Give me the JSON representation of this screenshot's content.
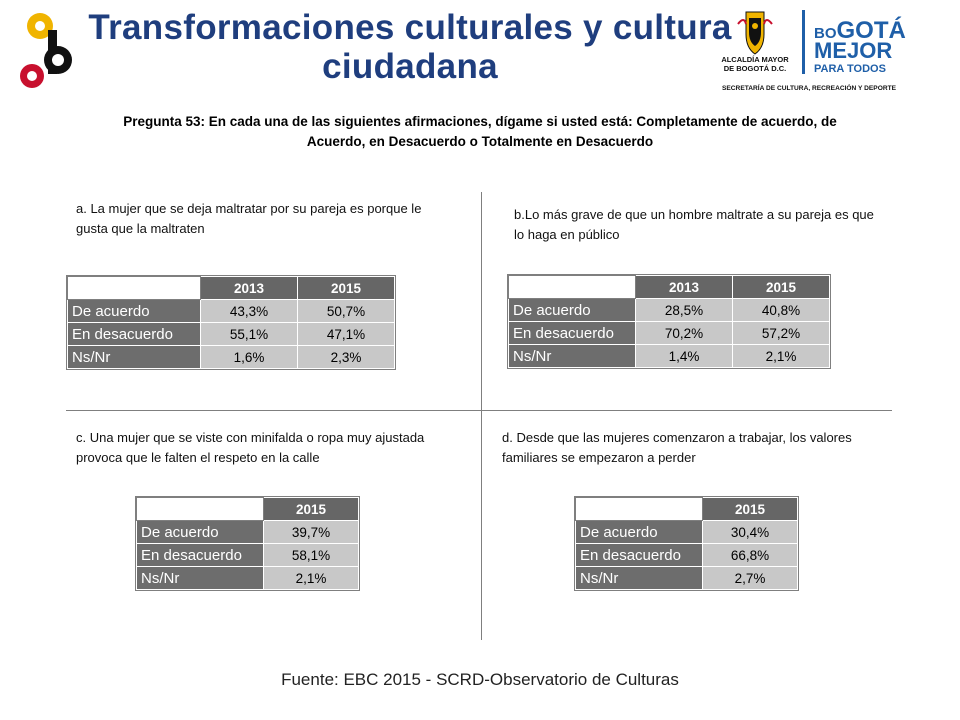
{
  "header": {
    "title_line1": "Transformaciones culturales y cultura",
    "title_line2": "ciudadana",
    "logo_right": {
      "city_name_line1": "ALCALDÍA MAYOR",
      "city_name_line2": "DE BOGOTÁ D.C.",
      "brand_line1_a": "BO",
      "brand_line1_b": "GOTÁ",
      "brand_line2": "MEJOR",
      "brand_line3": "PARA TODOS",
      "secretaria": "SECRETARÍA DE CULTURA, RECREACIÓN Y DEPORTE"
    }
  },
  "question": "Pregunta 53: En cada una de las siguientes afirmaciones, dígame si usted está: Completamente de acuerdo, de Acuerdo, en Desacuerdo o Totalmente en Desacuerdo",
  "panels": {
    "a": {
      "statement": "a. La mujer que se deja maltratar por su pareja es porque le gusta que la maltraten",
      "headers": [
        "2013",
        "2015"
      ],
      "rows": [
        {
          "label": "De acuerdo",
          "values": [
            "43,3%",
            "50,7%"
          ]
        },
        {
          "label": "En desacuerdo",
          "values": [
            "55,1%",
            "47,1%"
          ]
        },
        {
          "label": "Ns/Nr",
          "values": [
            "1,6%",
            "2,3%"
          ]
        }
      ]
    },
    "b": {
      "statement": "b.Lo más grave de que un hombre maltrate a su pareja es que lo haga en público",
      "headers": [
        "2013",
        "2015"
      ],
      "rows": [
        {
          "label": "De acuerdo",
          "values": [
            "28,5%",
            "40,8%"
          ]
        },
        {
          "label": "En desacuerdo",
          "values": [
            "70,2%",
            "57,2%"
          ]
        },
        {
          "label": "Ns/Nr",
          "values": [
            "1,4%",
            "2,1%"
          ]
        }
      ]
    },
    "c": {
      "statement": "c. Una mujer que se viste con minifalda o ropa muy ajustada provoca que le falten el respeto en la calle",
      "headers": [
        "2015"
      ],
      "rows": [
        {
          "label": "De acuerdo",
          "values": [
            "39,7%"
          ]
        },
        {
          "label": "En desacuerdo",
          "values": [
            "58,1%"
          ]
        },
        {
          "label": "Ns/Nr",
          "values": [
            "2,1%"
          ]
        }
      ]
    },
    "d": {
      "statement": "d. Desde que las mujeres comenzaron a trabajar, los valores familiares se empezaron a perder",
      "headers": [
        "2015"
      ],
      "rows": [
        {
          "label": "De acuerdo",
          "values": [
            "30,4%"
          ]
        },
        {
          "label": "En desacuerdo",
          "values": [
            "66,8%"
          ]
        },
        {
          "label": "Ns/Nr",
          "values": [
            "2,7%"
          ]
        }
      ]
    }
  },
  "source": "Fuente: EBC  2015 - SCRD-Observatorio  de Culturas",
  "colors": {
    "title": "#1f3e7e",
    "header_cell": "#666666",
    "label_cell": "#6d6d6d",
    "value_cell": "#c8c8c8",
    "logo_yellow": "#f0b400",
    "logo_red": "#c8102e",
    "brand_blue": "#1f5fa8"
  }
}
